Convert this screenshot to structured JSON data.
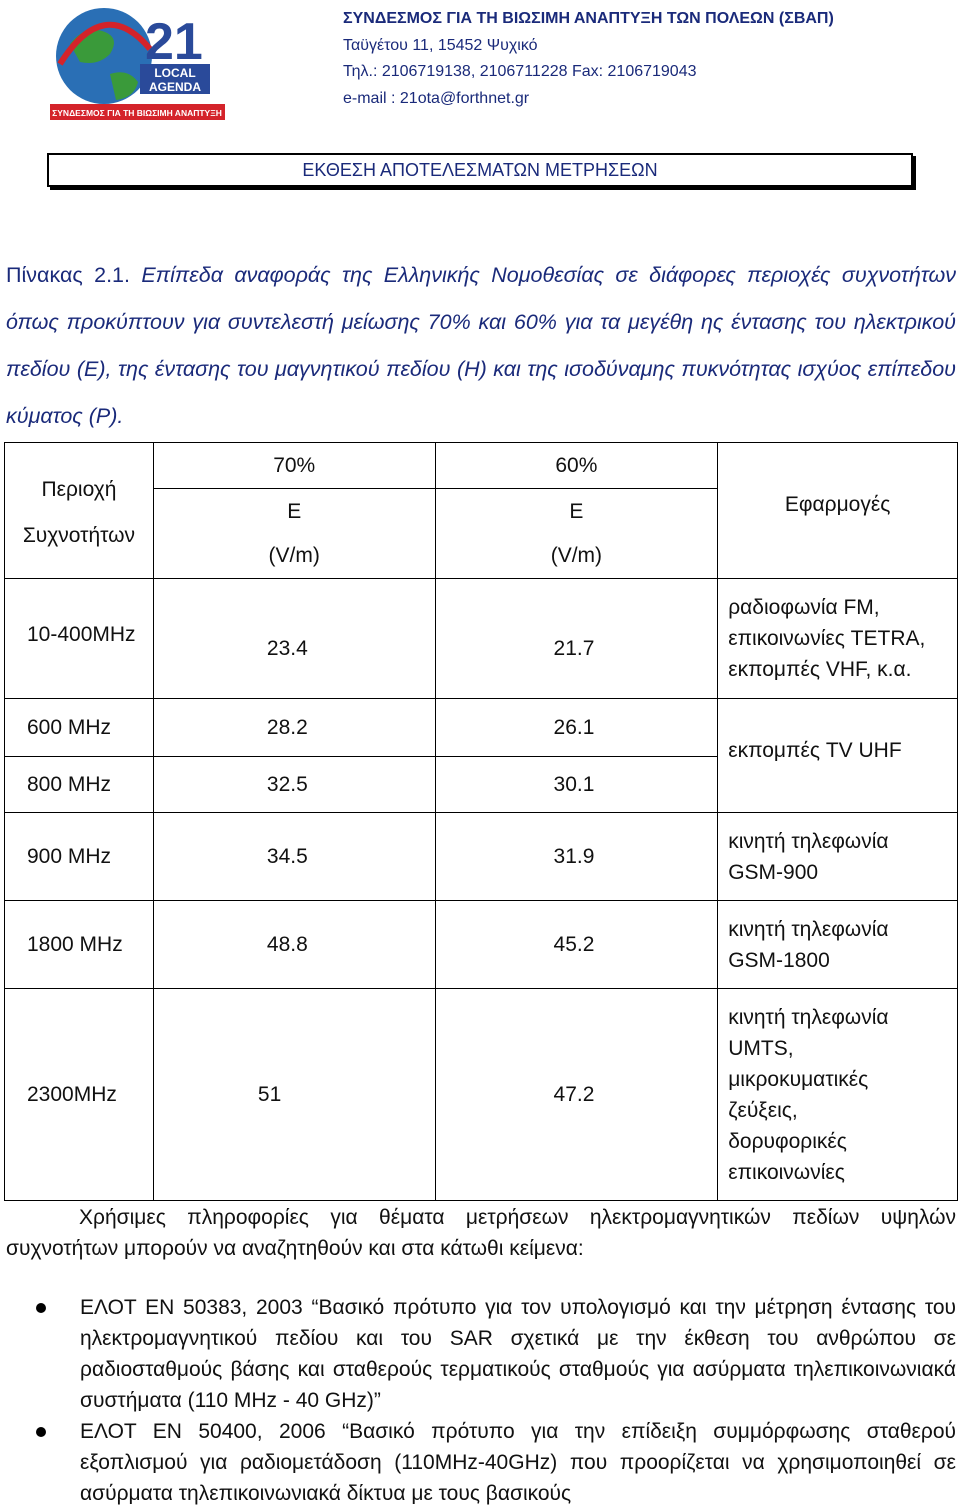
{
  "header": {
    "logo": {
      "number": "21",
      "line1": "LOCAL",
      "line2": "AGENDA",
      "banner": "ΣΥΝΔΕΣΜΟΣ ΓΙΑ ΤΗ ΒΙΩΣΙΜΗ ΑΝΑΠΤΥΞΗ"
    },
    "org_name": "ΣΥΝΔΕΣΜΟΣ ΓΙΑ ΤΗ ΒΙΩΣΙΜΗ ΑΝΑΠΤΥΞΗ ΤΩΝ ΠΟΛΕΩΝ (ΣΒΑΠ)",
    "address": "Ταϋγέτου 11, 15452 Ψυχικό",
    "phone": "Τηλ.: 2106719138, 2106711228 Fax: 2106719043",
    "email": "e-mail : 21ota@forthnet.gr"
  },
  "report_title": "ΕΚΘΕΣΗ ΑΠΟΤΕΛΕΣΜΑΤΩΝ ΜΕΤΡΗΣΕΩΝ",
  "caption": {
    "lead": "Πίνακας 2.1.",
    "text": "Επίπεδα αναφοράς της Ελληνικής Νομοθεσίας σε διάφορες περιοχές συχνοτήτων όπως προκύπτουν για συντελεστή μείωσης 70% και 60% για τα μεγέθη ης έντασης του ηλεκτρικού πεδίου (Ε), της έντασης του μαγνητικού πεδίου (Η) και της ισοδύναμης πυκνότητας ισχύος επίπεδου κύματος (Ρ)."
  },
  "table": {
    "header": {
      "region_line1": "Περιοχή",
      "region_line2": "Συχνοτήτων",
      "col70": "70%",
      "col60": "60%",
      "e_label": "Ε",
      "unit": "(V/m)",
      "applications": "Εφαρμογές"
    },
    "rows": [
      {
        "region": "10-400MHz",
        "v70": "23.4",
        "v60": "21.7",
        "app_lines": [
          "ραδιοφωνία FM,",
          "επικοινωνίες TETRA,",
          "εκπομπές VHF, κ.α."
        ]
      },
      {
        "region": "600 MHz",
        "v70": "28.2",
        "v60": "26.1",
        "app": "εκπομπές TV UHF"
      },
      {
        "region": "800 MHz",
        "v70": "32.5",
        "v60": "30.1"
      },
      {
        "region": "900 MHz",
        "v70": "34.5",
        "v60": "31.9",
        "app_lines": [
          "κινητή τηλεφωνία",
          "GSM-900"
        ]
      },
      {
        "region": "1800 MHz",
        "v70": "48.8",
        "v60": "45.2",
        "app_lines": [
          "κινητή τηλεφωνία",
          "GSM-1800"
        ]
      },
      {
        "region": "2300MHz",
        "v70": "51",
        "v60": "47.2",
        "app_lines": [
          "κινητή τηλεφωνία",
          "UMTS,",
          "μικροκυματικές",
          "ζεύξεις,",
          "δορυφορικές",
          "επικοινωνίες"
        ]
      }
    ]
  },
  "info_text": "Χρήσιμες πληροφορίες για θέματα μετρήσεων ηλεκτρομαγνητικών πεδίων υψηλών συχνοτήτων μπορούν να αναζητηθούν και στα κάτωθι κείμενα:",
  "references": [
    "ΕΛΟΤ ΕΝ 50383, 2003 “Βασικό πρότυπο για τον υπολογισμό και την μέτρηση έντασης του ηλεκτρομαγνητικού πεδίου και του SAR σχετικά με την έκθεση του ανθρώπου σε ραδιοσταθμούς βάσης και σταθερούς τερματικούς σταθμούς για ασύρματα τηλεπικοινωνιακά συστήματα (110 MHz - 40 GHz)”",
    "ΕΛΟΤ ΕΝ 50400, 2006 “Βασικό πρότυπο για την επίδειξη συμμόρφωσης σταθερού εξοπλισμού για ραδιομετάδοση (110MHz-40GHz) που προορίζεται να χρησιμοποιηθεί σε ασύρματα τηλεπικοινωνιακά δίκτυα με τους βασικούς"
  ],
  "colors": {
    "header_blue": "#1a2a7a",
    "logo_red": "#d4232a",
    "logo_blue": "#2a4a9a",
    "logo_green": "#3a9a3a"
  }
}
